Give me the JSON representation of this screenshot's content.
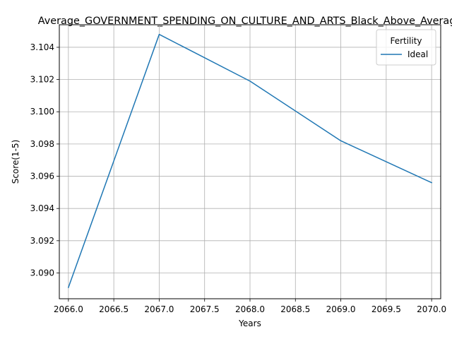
{
  "chart_data": {
    "type": "line",
    "title": "Average_GOVERNMENT_SPENDING_ON_CULTURE_AND_ARTS_Black_Above_Average",
    "xlabel": "Years",
    "ylabel": "Score(1-5)",
    "xlim": [
      2065.9,
      2070.1
    ],
    "ylim": [
      3.0884,
      3.1054
    ],
    "x_ticks": [
      2066.0,
      2066.5,
      2067.0,
      2067.5,
      2068.0,
      2068.5,
      2069.0,
      2069.5,
      2070.0
    ],
    "y_ticks": [
      3.09,
      3.092,
      3.094,
      3.096,
      3.098,
      3.1,
      3.102,
      3.104
    ],
    "x_tick_labels": [
      "2066.0",
      "2066.5",
      "2067.0",
      "2067.5",
      "2068.0",
      "2068.5",
      "2069.0",
      "2069.5",
      "2070.0"
    ],
    "y_tick_labels": [
      "3.090",
      "3.092",
      "3.094",
      "3.096",
      "3.098",
      "3.100",
      "3.102",
      "3.104"
    ],
    "grid": true,
    "legend": {
      "title": "Fertility",
      "placement": "top-right"
    },
    "series": [
      {
        "name": "Ideal",
        "color": "#1f77b4",
        "x": [
          2066,
          2067,
          2068,
          2069,
          2070
        ],
        "values": [
          3.0891,
          3.1048,
          3.1019,
          3.0982,
          3.0956
        ]
      }
    ]
  }
}
